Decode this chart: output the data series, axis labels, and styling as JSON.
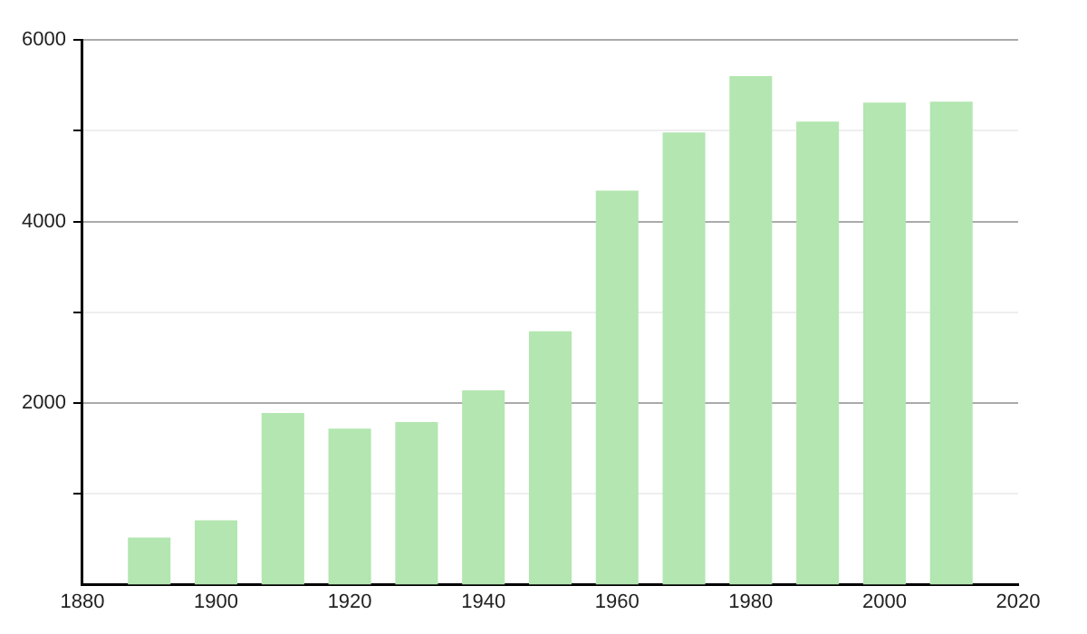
{
  "chart_data": {
    "type": "bar",
    "x": [
      1890,
      1900,
      1910,
      1920,
      1930,
      1940,
      1950,
      1960,
      1970,
      1980,
      1990,
      2000,
      2010
    ],
    "values": [
      520,
      710,
      1890,
      1720,
      1790,
      2140,
      2790,
      4340,
      4980,
      5600,
      5100,
      5310,
      5320
    ],
    "color": "#b3e6b0",
    "xlim": [
      1880,
      2020
    ],
    "xticks": [
      1880,
      1900,
      1920,
      1940,
      1960,
      1980,
      2000,
      2020
    ],
    "ylim": [
      0,
      6000
    ],
    "yticks": [
      {
        "value": 1000,
        "label": null
      },
      2000,
      {
        "value": 3000,
        "label": null
      },
      4000,
      {
        "value": 5000,
        "label": null
      },
      6000
    ],
    "grid": "y",
    "legend": false
  }
}
